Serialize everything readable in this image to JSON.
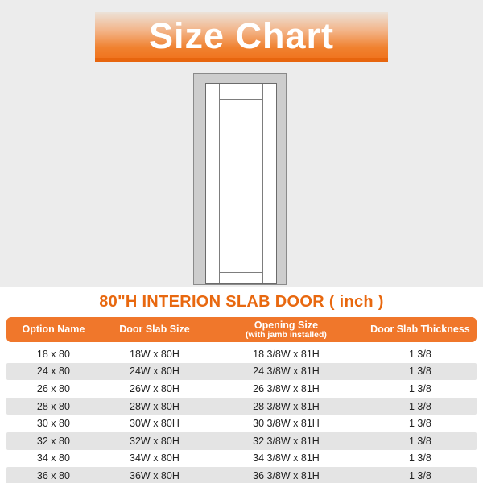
{
  "colors": {
    "accent": "#f0772b",
    "banner_edge_orange": "#e7650e",
    "title_orange": "#e8680f",
    "stripe_gray": "#e4e4e4",
    "page_top_gray": "#ececec",
    "door_jamb_gray": "#cdcdcd"
  },
  "banner": {
    "title": "Size Chart"
  },
  "door_illustration": {
    "name": "shaker-slab-door-in-jamb-diagram"
  },
  "section_title": "80\"H INTERION SLAB DOOR ( inch )",
  "table": {
    "columns": [
      {
        "label": "Option Name"
      },
      {
        "label": "Door Slab Size"
      },
      {
        "label": "Opening Size",
        "sublabel": "(with jamb installed)"
      },
      {
        "label": "Door Slab Thickness"
      }
    ],
    "rows": [
      [
        "18 x 80",
        "18W x 80H",
        "18 3/8W x 81H",
        "1 3/8"
      ],
      [
        "24 x 80",
        "24W x 80H",
        "24 3/8W x 81H",
        "1 3/8"
      ],
      [
        "26 x 80",
        "26W x 80H",
        "26 3/8W x 81H",
        "1 3/8"
      ],
      [
        "28 x 80",
        "28W x 80H",
        "28 3/8W x 81H",
        "1 3/8"
      ],
      [
        "30 x 80",
        "30W x 80H",
        "30 3/8W x 81H",
        "1 3/8"
      ],
      [
        "32 x 80",
        "32W x 80H",
        "32 3/8W x 81H",
        "1 3/8"
      ],
      [
        "34 x 80",
        "34W x 80H",
        "34 3/8W x 81H",
        "1 3/8"
      ],
      [
        "36 x 80",
        "36W x 80H",
        "36 3/8W x 81H",
        "1 3/8"
      ]
    ]
  }
}
